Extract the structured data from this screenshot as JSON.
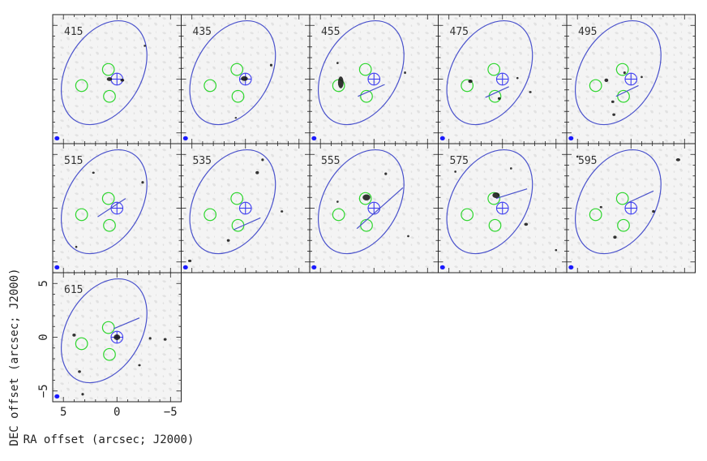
{
  "colors": {
    "frame": "#222222",
    "ellipse": "#4a52cc",
    "circle": "#2ed62e",
    "cross": "#3d3df0",
    "pa_line": "#4a52cc",
    "beam": "#1a1aff",
    "noise": "#d9d9d9",
    "contour": "#111111"
  },
  "chart_data": {
    "type": "channel-map",
    "xlabel": "RA offset (arcsec; J2000)",
    "ylabel": "DEC offset (arcsec; J2000)",
    "xlim": [
      6,
      -6
    ],
    "ylim": [
      -6,
      6
    ],
    "xticks": [
      5,
      0,
      -5
    ],
    "yticks": [
      5,
      0,
      -5
    ],
    "xtick_labels": [
      "5",
      "0",
      "−5"
    ],
    "ytick_labels": [
      "5",
      "0",
      "−5"
    ],
    "ellipse": {
      "center": [
        1.2,
        0.6
      ],
      "semi_major": 5.2,
      "semi_minor": 3.5,
      "tilt_deg": 30
    },
    "cross": {
      "x": 0,
      "y": 0,
      "size": 0.55
    },
    "circles": [
      {
        "x": 3.3,
        "y": -0.6,
        "r": 0.55
      },
      {
        "x": 0.8,
        "y": 0.9,
        "r": 0.55
      },
      {
        "x": 0.7,
        "y": -1.6,
        "r": 0.55
      }
    ],
    "beam": {
      "x": 5.6,
      "y": -5.5
    },
    "panels": [
      {
        "label": "415",
        "line": null,
        "contours": [
          [
            0.7,
            0.0,
            0.25,
            0.18
          ],
          [
            -0.5,
            -0.1,
            0.18,
            0.14
          ],
          [
            -2.6,
            3.1,
            0.1,
            0.1
          ]
        ]
      },
      {
        "label": "435",
        "line": null,
        "contours": [
          [
            0.1,
            0.05,
            0.32,
            0.22
          ],
          [
            -2.4,
            1.3,
            0.12,
            0.12
          ],
          [
            0.9,
            -3.6,
            0.1,
            0.08
          ]
        ]
      },
      {
        "label": "455",
        "line": {
          "x1": -1.0,
          "y1": -0.5,
          "x2": 1.5,
          "y2": -1.6
        },
        "contours": [
          [
            3.1,
            -0.3,
            0.26,
            0.55
          ],
          [
            3.4,
            1.5,
            0.1,
            0.1
          ],
          [
            -2.9,
            0.6,
            0.1,
            0.12
          ]
        ]
      },
      {
        "label": "475",
        "line": {
          "x1": -0.6,
          "y1": -0.7,
          "x2": 1.6,
          "y2": -1.7
        },
        "contours": [
          [
            3.0,
            -0.2,
            0.2,
            0.16
          ],
          [
            0.3,
            -1.8,
            0.14,
            0.12
          ],
          [
            -2.6,
            -1.2,
            0.12,
            0.1
          ],
          [
            -1.4,
            0.1,
            0.1,
            0.1
          ]
        ]
      },
      {
        "label": "495",
        "line": {
          "x1": -0.7,
          "y1": -0.6,
          "x2": 1.4,
          "y2": -1.6
        },
        "contours": [
          [
            2.3,
            -0.1,
            0.18,
            0.16
          ],
          [
            1.7,
            -2.1,
            0.14,
            0.12
          ],
          [
            1.6,
            -3.3,
            0.14,
            0.12
          ],
          [
            0.6,
            0.6,
            0.12,
            0.12
          ],
          [
            -1.0,
            0.2,
            0.1,
            0.1
          ]
        ]
      },
      {
        "label": "515",
        "line": {
          "x1": -0.8,
          "y1": 0.9,
          "x2": 1.8,
          "y2": -0.8
        },
        "contours": [
          [
            2.2,
            3.3,
            0.12,
            0.1
          ],
          [
            -2.4,
            2.4,
            0.12,
            0.12
          ],
          [
            3.8,
            -3.6,
            0.1,
            0.1
          ]
        ]
      },
      {
        "label": "535",
        "line": {
          "x1": -1.4,
          "y1": -0.9,
          "x2": 1.1,
          "y2": -2.0
        },
        "contours": [
          [
            -1.1,
            3.3,
            0.16,
            0.14
          ],
          [
            1.6,
            -3.0,
            0.14,
            0.12
          ],
          [
            -3.4,
            -0.3,
            0.12,
            0.1
          ],
          [
            5.2,
            -4.9,
            0.16,
            0.12
          ],
          [
            -1.6,
            4.5,
            0.12,
            0.12
          ]
        ]
      },
      {
        "label": "555",
        "line": {
          "x1": -2.7,
          "y1": 1.9,
          "x2": 1.6,
          "y2": -1.9
        },
        "contours": [
          [
            0.7,
            1.0,
            0.36,
            0.28
          ],
          [
            -1.1,
            3.2,
            0.12,
            0.12
          ],
          [
            3.4,
            0.6,
            0.1,
            0.1
          ],
          [
            -3.2,
            -2.6,
            0.1,
            0.1
          ]
        ]
      },
      {
        "label": "575",
        "line": {
          "x1": -2.3,
          "y1": 1.8,
          "x2": 0.6,
          "y2": 0.9
        },
        "contours": [
          [
            0.6,
            1.2,
            0.34,
            0.26
          ],
          [
            -2.2,
            -1.5,
            0.18,
            0.14
          ],
          [
            -0.8,
            3.7,
            0.1,
            0.1
          ],
          [
            4.4,
            3.4,
            0.1,
            0.1
          ],
          [
            -5.0,
            -3.9,
            0.1,
            0.1
          ]
        ]
      },
      {
        "label": "595",
        "line": {
          "x1": -2.1,
          "y1": 1.6,
          "x2": 0.3,
          "y2": 0.5
        },
        "contours": [
          [
            1.5,
            -2.7,
            0.16,
            0.14
          ],
          [
            -4.4,
            4.5,
            0.2,
            0.14
          ],
          [
            -2.1,
            -0.3,
            0.14,
            0.12
          ],
          [
            5.0,
            4.8,
            0.1,
            0.1
          ],
          [
            2.8,
            0.1,
            0.12,
            0.1
          ]
        ]
      },
      {
        "label": "615",
        "line": {
          "x1": -2.1,
          "y1": 1.8,
          "x2": 0.3,
          "y2": 0.8
        },
        "contours": [
          [
            0.0,
            0.0,
            0.3,
            0.26
          ],
          [
            4.0,
            0.2,
            0.16,
            0.14
          ],
          [
            -3.1,
            -0.1,
            0.12,
            0.12
          ],
          [
            -4.5,
            -0.2,
            0.14,
            0.12
          ],
          [
            3.5,
            -3.2,
            0.14,
            0.12
          ],
          [
            -2.1,
            -2.6,
            0.12,
            0.1
          ],
          [
            3.2,
            -5.3,
            0.12,
            0.12
          ]
        ]
      }
    ]
  }
}
